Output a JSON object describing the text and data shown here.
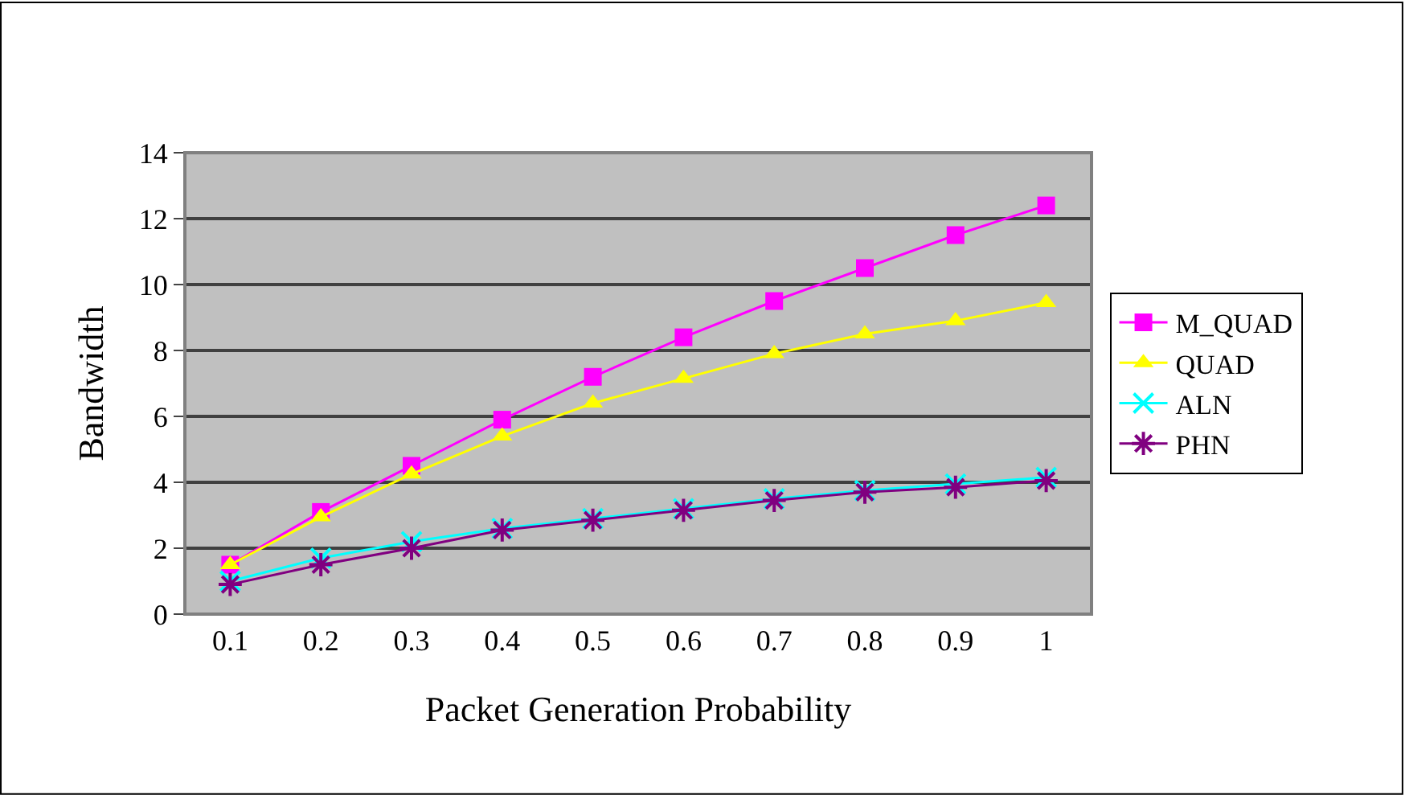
{
  "chart_data": {
    "type": "line",
    "xlabel": "Packet Generation Probability",
    "ylabel": "Bandwidth",
    "categories": [
      "0.1",
      "0.2",
      "0.3",
      "0.4",
      "0.5",
      "0.6",
      "0.7",
      "0.8",
      "0.9",
      "1"
    ],
    "series": [
      {
        "name": "M_QUAD",
        "color": "#ff00ff",
        "marker": "square",
        "values": [
          1.5,
          3.1,
          4.5,
          5.9,
          7.2,
          8.4,
          9.5,
          10.5,
          11.5,
          12.4
        ]
      },
      {
        "name": "QUAD",
        "color": "#ffff00",
        "marker": "triangle",
        "values": [
          1.5,
          2.95,
          4.25,
          5.4,
          6.4,
          7.15,
          7.9,
          8.5,
          8.9,
          9.45
        ]
      },
      {
        "name": "ALN",
        "color": "#00ffff",
        "marker": "cross",
        "values": [
          1.0,
          1.7,
          2.2,
          2.6,
          2.9,
          3.2,
          3.5,
          3.75,
          3.95,
          4.15
        ]
      },
      {
        "name": "PHN",
        "color": "#800080",
        "marker": "cross",
        "values": [
          0.9,
          1.5,
          2.0,
          2.55,
          2.85,
          3.15,
          3.45,
          3.7,
          3.85,
          4.05
        ]
      }
    ],
    "ylim": [
      0,
      14
    ],
    "yticks": [
      0,
      2,
      4,
      6,
      8,
      10,
      12,
      14
    ],
    "grid": "y",
    "legend": "right"
  }
}
